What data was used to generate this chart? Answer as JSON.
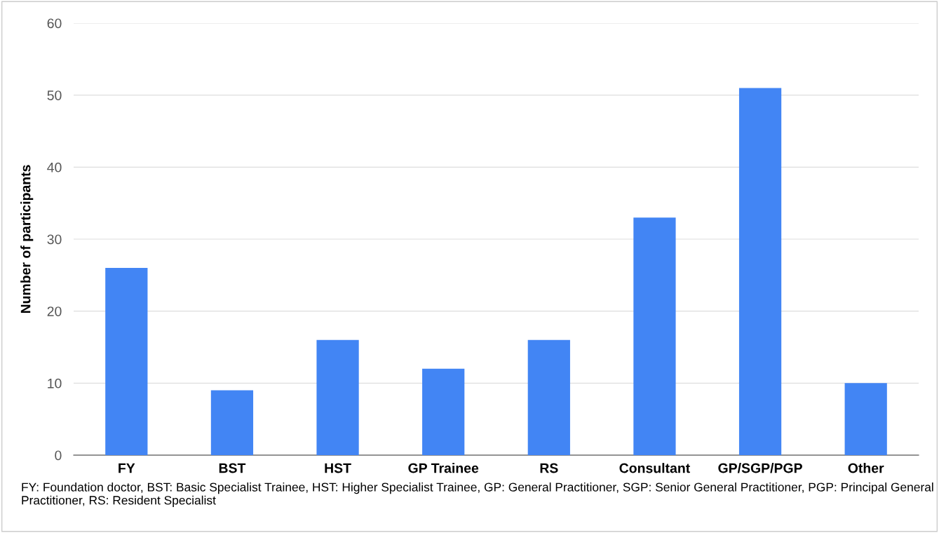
{
  "chart_data": {
    "type": "bar",
    "ylabel": "Number of participants",
    "categories": [
      "FY",
      "BST",
      "HST",
      "GP Trainee",
      "RS",
      "Consultant",
      "GP/SGP/PGP",
      "Other"
    ],
    "values": [
      26,
      9,
      16,
      12,
      16,
      33,
      51,
      10
    ],
    "color": "#4285f4",
    "ylim": [
      0,
      60
    ],
    "yticks": [
      0,
      10,
      20,
      30,
      40,
      50,
      60
    ],
    "grid": "y",
    "legend": false,
    "annotations": [
      "FY: Foundation doctor, BST: Basic Specialist Trainee, HST: Higher Specialist Trainee, GP: General Practitioner, SGP: Senior General Practitioner, PGP: Principal General Practitioner, RS: Resident Specialist"
    ]
  }
}
